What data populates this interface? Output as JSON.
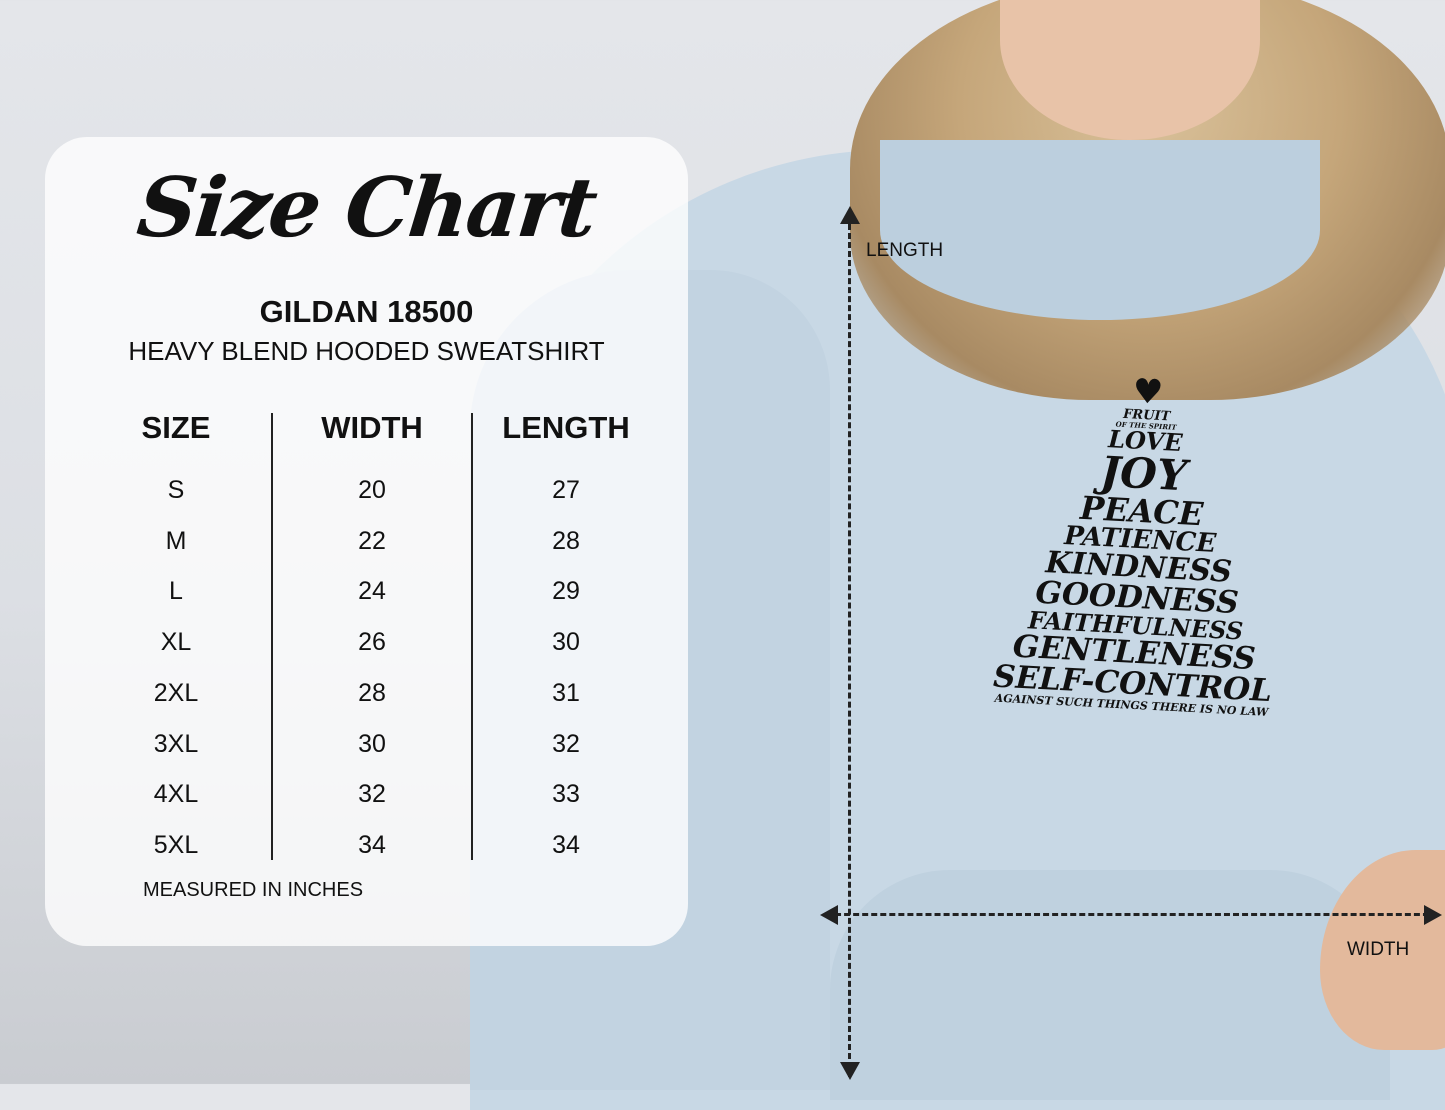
{
  "chart": {
    "title": "Size Chart",
    "model": "GILDAN 18500",
    "description": "HEAVY BLEND HOODED SWEATSHIRT",
    "headers": [
      "SIZE",
      "WIDTH",
      "LENGTH"
    ],
    "rows": [
      [
        "S",
        "20",
        "27"
      ],
      [
        "M",
        "22",
        "28"
      ],
      [
        "L",
        "24",
        "29"
      ],
      [
        "XL",
        "26",
        "30"
      ],
      [
        "2XL",
        "28",
        "31"
      ],
      [
        "3XL",
        "30",
        "32"
      ],
      [
        "4XL",
        "32",
        "33"
      ],
      [
        "5XL",
        "34",
        "34"
      ]
    ],
    "footnote": "MEASURED IN INCHES"
  },
  "measure": {
    "length_label": "LENGTH",
    "width_label": "WIDTH"
  },
  "print": {
    "lines": [
      "FRUIT",
      "OF THE SPIRIT",
      "LOVE",
      "JOY",
      "PEACE",
      "PATIENCE",
      "KINDNESS",
      "GOODNESS",
      "FAITHFULNESS",
      "GENTLENESS",
      "SELF-CONTROL",
      "AGAINST SUCH THINGS THERE IS NO LAW"
    ],
    "icon": "heart-icon"
  },
  "colors": {
    "hoodie": "#c8d8e5",
    "card": "#ffffff",
    "text": "#111111"
  }
}
